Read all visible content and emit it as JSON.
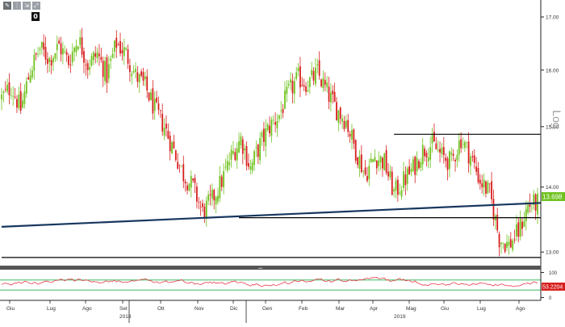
{
  "toolbar": {
    "buttons": [
      {
        "label": "✎",
        "icon": "pencil-icon"
      },
      {
        "label": "⋮",
        "icon": "more-icon"
      },
      {
        "label": "⇲",
        "icon": "expand-icon"
      },
      {
        "label": "⤢",
        "icon": "fullscreen-icon"
      }
    ],
    "badge": "0"
  },
  "log_label": "Log",
  "price_badge": "13.698",
  "osc_badge": "53.2204",
  "colors": {
    "up": "#6fc21e",
    "down": "#d81e1e",
    "trendline": "#17375e",
    "hline": "#000000",
    "badge_bg": "#6fc21e",
    "osc_line": "#e83a4a",
    "osc_badge_bg": "#d81e1e",
    "osc_band": "#21b04b",
    "divider": "#555555"
  },
  "chart_data": [
    {
      "type": "candlestick",
      "scale": "log",
      "ylim": [
        12.8,
        17.3
      ],
      "y_ticks": [
        "17.00",
        "16.00",
        "15.00",
        "14.00",
        "13.00"
      ],
      "x_labels": [
        "Giu",
        "Lug",
        "Ago",
        "Set",
        "Ott",
        "Nov",
        "Dic",
        "Gen",
        "Feb",
        "Mar",
        "Apr",
        "Mag",
        "Giu",
        "Lug",
        "Ago"
      ],
      "year_labels": [
        "2018",
        "2019"
      ],
      "last_value": 13.698,
      "close_path": [
        [
          0,
          15.5
        ],
        [
          5,
          15.7
        ],
        [
          10,
          15.3
        ],
        [
          15,
          16.0
        ],
        [
          20,
          16.4
        ],
        [
          25,
          16.2
        ],
        [
          30,
          16.45
        ],
        [
          35,
          16.15
        ],
        [
          40,
          16.6
        ],
        [
          45,
          16.1
        ],
        [
          50,
          16.3
        ],
        [
          55,
          15.9
        ],
        [
          60,
          16.5
        ],
        [
          65,
          16.3
        ],
        [
          70,
          15.9
        ],
        [
          75,
          15.7
        ],
        [
          80,
          15.3
        ],
        [
          85,
          15.0
        ],
        [
          90,
          14.6
        ],
        [
          95,
          14.2
        ],
        [
          100,
          14.0
        ],
        [
          105,
          13.6
        ],
        [
          110,
          13.8
        ],
        [
          115,
          14.1
        ],
        [
          120,
          14.5
        ],
        [
          125,
          14.8
        ],
        [
          130,
          14.3
        ],
        [
          135,
          14.7
        ],
        [
          140,
          15.0
        ],
        [
          145,
          15.2
        ],
        [
          150,
          15.6
        ],
        [
          155,
          15.85
        ],
        [
          160,
          15.75
        ],
        [
          165,
          15.95
        ],
        [
          170,
          15.6
        ],
        [
          175,
          15.3
        ],
        [
          180,
          15.1
        ],
        [
          185,
          14.6
        ],
        [
          190,
          14.2
        ],
        [
          195,
          14.5
        ],
        [
          200,
          14.4
        ],
        [
          205,
          13.9
        ],
        [
          210,
          14.1
        ],
        [
          215,
          14.3
        ],
        [
          220,
          14.6
        ],
        [
          225,
          14.7
        ],
        [
          230,
          14.5
        ],
        [
          235,
          14.4
        ],
        [
          240,
          14.8
        ],
        [
          245,
          14.5
        ],
        [
          250,
          14.1
        ],
        [
          255,
          13.9
        ],
        [
          260,
          13.2
        ],
        [
          265,
          13.1
        ],
        [
          270,
          13.3
        ],
        [
          275,
          13.7
        ],
        [
          280,
          13.75
        ]
      ],
      "trendline": [
        [
          0,
          13.38
        ],
        [
          280,
          13.75
        ]
      ],
      "hlines": [
        {
          "y": 14.87,
          "from": 205,
          "to": 280
        },
        {
          "y": 13.52,
          "from": 124,
          "to": 280
        },
        {
          "y": 12.92,
          "from": 0,
          "to": 280
        }
      ]
    },
    {
      "type": "line",
      "name": "oscillator",
      "ylim": [
        -5,
        105
      ],
      "y_ticks": [
        "100",
        "0"
      ],
      "last_value": 53.2204,
      "levels": [
        70,
        30
      ]
    }
  ]
}
